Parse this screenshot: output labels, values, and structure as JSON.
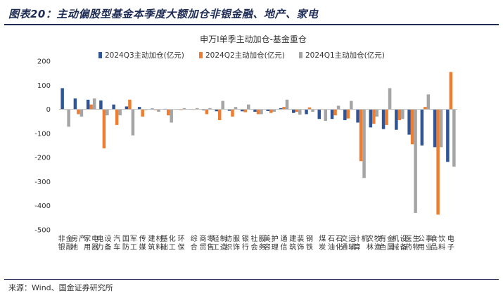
{
  "figure_title": "图表20：主动偏股型基金本季度大额加仓非银金融、地产、家电",
  "source": "来源：Wind、国金证券研究所",
  "colors": {
    "q3": "#2f5597",
    "q2": "#ed7d31",
    "q1": "#a5a5a5"
  },
  "chart_data": {
    "type": "bar",
    "title": "申万Ⅰ单季主动加仓-基金重仓",
    "ylim": [
      -500,
      200
    ],
    "yticks": [
      200,
      100,
      0,
      -100,
      -200,
      -300,
      -400,
      -500
    ],
    "legend_position": "top-left",
    "grid": false,
    "categories": [
      "非银金融",
      "房地产",
      "家用电器",
      "电力设备",
      "汽车",
      "国防军工",
      "传媒",
      "建筑材料",
      "基础化工",
      "环保",
      "综合",
      "商贸零售",
      "轻工制造",
      "纺织服饰",
      "银行",
      "社会服务",
      "美容护理",
      "通信",
      "建筑装饰",
      "钢铁",
      "煤炭",
      "石油石化",
      "交通运输",
      "计算机",
      "农林牧渔",
      "有色金属",
      "机械设备",
      "医药生物",
      "公用事业",
      "食品饮料",
      "电子"
    ],
    "series": [
      {
        "name": "2024Q3主动加仓(亿元)",
        "values": [
          88,
          45,
          40,
          37,
          20,
          12,
          10,
          3,
          2,
          1,
          1,
          -4,
          -8,
          -6,
          -8,
          -10,
          -7,
          5,
          -15,
          -20,
          -40,
          -40,
          -45,
          -55,
          -75,
          -82,
          -85,
          -105,
          -150,
          -157,
          -218
        ]
      },
      {
        "name": "2024Q2主动加仓(亿元)",
        "values": [
          0,
          -20,
          20,
          -162,
          -65,
          40,
          -30,
          -3,
          -25,
          -3,
          -2,
          -20,
          -45,
          -30,
          -12,
          -20,
          -15,
          10,
          -10,
          8,
          0,
          -25,
          -38,
          -215,
          -60,
          -65,
          -45,
          -145,
          10,
          -437,
          155
        ]
      },
      {
        "name": "2024Q1主动加仓(亿元)",
        "values": [
          -72,
          -30,
          45,
          -25,
          -25,
          -108,
          -3,
          -10,
          -55,
          5,
          5,
          5,
          35,
          10,
          20,
          -20,
          -10,
          40,
          -22,
          -10,
          -48,
          15,
          35,
          -285,
          -30,
          88,
          -40,
          -430,
          62,
          -157,
          -238
        ]
      }
    ]
  }
}
